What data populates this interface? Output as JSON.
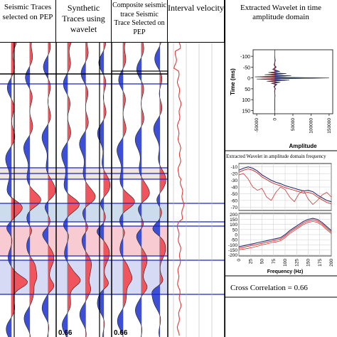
{
  "colors": {
    "positive_fill": "#f0545c",
    "negative_fill": "#3d4fd6",
    "band_tan": "#e8ddd0",
    "band_blue": "#bcd0e6",
    "band_pink": "#f6b8c3",
    "band_violet": "#c8cdf2",
    "horizon_line": "#1a22c8",
    "velocity_line": "#e03a3a",
    "frame": "#000000"
  },
  "headers": [
    {
      "key": "seismic",
      "text": "Seismic Traces selected on PEP"
    },
    {
      "key": "synthetic",
      "text": "Synthetic Traces using wavelet"
    },
    {
      "key": "composite",
      "text": "Composite seismic trace Seismic Trace Selected on PEP"
    },
    {
      "key": "velocity",
      "text": "Interval velocity"
    }
  ],
  "track_labels": {
    "synthetic_bottom": "0.66",
    "composite_bottom": "0.66"
  },
  "chart_data": [
    {
      "type": "line",
      "title": "Extracted Wavelet in time amplitude domain",
      "xlabel": "Amplitude",
      "ylabel": "Time (ms)",
      "x_ticks": [
        "-50000",
        "0",
        "50000",
        "100000",
        "150000"
      ],
      "y_ticks": [
        "-100",
        "-50",
        "0",
        "50",
        "100",
        "150"
      ],
      "xlim": [
        -60000,
        160000
      ],
      "ylim": [
        -130,
        165
      ],
      "series": [
        {
          "values_time_ms": [
            -100,
            -80,
            -60,
            -50,
            -40,
            -30,
            -25,
            -20,
            -15,
            -10,
            -5,
            0,
            5,
            10,
            15,
            20,
            25,
            30,
            40,
            50,
            60,
            80,
            100,
            150
          ],
          "values_amplitude": [
            0,
            1500,
            -2500,
            4000,
            -6000,
            14000,
            -18000,
            32000,
            -28000,
            45000,
            -55000,
            150000,
            -50000,
            40000,
            -22000,
            15000,
            -10000,
            6000,
            -3000,
            2000,
            -1000,
            800,
            0,
            0
          ]
        }
      ]
    },
    {
      "type": "line",
      "title": "Extracted Wavelet in amplitude domain frequency",
      "xlabel": "Frequency (Hz)",
      "x_ticks": [
        "0",
        "25",
        "50",
        "75",
        "100",
        "125",
        "150",
        "175",
        "200"
      ],
      "xlim": [
        0,
        200
      ],
      "upper_panel": {
        "y_ticks": [
          "-10",
          "-20",
          "-30",
          "-40",
          "-50",
          "-60",
          "-70"
        ],
        "ylim": [
          -75,
          -5
        ],
        "series": [
          {
            "x": [
              0,
              10,
              20,
              30,
              40,
              50,
              60,
              70,
              80,
              90,
              100,
              110,
              120,
              130,
              140,
              150,
              160,
              170,
              180,
              190,
              200
            ],
            "values": [
              -15,
              -12,
              -10,
              -12,
              -16,
              -22,
              -26,
              -30,
              -33,
              -35,
              -38,
              -40,
              -42,
              -44,
              -46,
              -45,
              -47,
              -52,
              -56,
              -60,
              -62
            ]
          },
          {
            "x": [
              0,
              10,
              20,
              30,
              40,
              50,
              60,
              70,
              80,
              90,
              100,
              110,
              120,
              130,
              140,
              150,
              160,
              170,
              180,
              190,
              200
            ],
            "values": [
              -18,
              -15,
              -13,
              -15,
              -19,
              -25,
              -29,
              -33,
              -36,
              -38,
              -41,
              -43,
              -45,
              -47,
              -49,
              -48,
              -50,
              -55,
              -59,
              -63,
              -65
            ]
          },
          {
            "x": [
              0,
              10,
              20,
              30,
              40,
              50,
              60,
              70,
              80,
              90,
              100,
              110,
              120,
              130,
              140,
              150,
              160,
              170,
              180,
              190,
              200
            ],
            "values": [
              -22,
              -20,
              -28,
              -40,
              -45,
              -42,
              -55,
              -60,
              -48,
              -40,
              -44,
              -55,
              -62,
              -50,
              -45,
              -58,
              -66,
              -60,
              -52,
              -48,
              -55
            ]
          }
        ]
      },
      "lower_panel": {
        "y_ticks": [
          "200",
          "150",
          "100",
          "50",
          "0",
          "-50",
          "-100",
          "-150",
          "-200"
        ],
        "ylim": [
          -210,
          210
        ],
        "series": [
          {
            "x": [
              0,
              10,
              20,
              30,
              40,
              50,
              60,
              70,
              80,
              90,
              100,
              110,
              120,
              130,
              140,
              150,
              160,
              170,
              180,
              190,
              200
            ],
            "values": [
              -120,
              -110,
              -100,
              -90,
              -80,
              -70,
              -60,
              -50,
              -40,
              -30,
              0,
              40,
              70,
              100,
              130,
              150,
              160,
              150,
              120,
              80,
              40
            ]
          },
          {
            "x": [
              0,
              10,
              20,
              30,
              40,
              50,
              60,
              70,
              80,
              90,
              100,
              110,
              120,
              130,
              140,
              150,
              160,
              170,
              180,
              190,
              200
            ],
            "values": [
              -135,
              -125,
              -115,
              -105,
              -95,
              -85,
              -75,
              -65,
              -55,
              -45,
              -15,
              25,
              55,
              85,
              115,
              135,
              145,
              135,
              105,
              65,
              25
            ]
          },
          {
            "x": [
              0,
              10,
              20,
              30,
              40,
              50,
              60,
              70,
              80,
              90,
              100,
              110,
              120,
              130,
              140,
              150,
              160,
              170,
              180,
              190,
              200
            ],
            "values": [
              -150,
              -142,
              -135,
              -125,
              -115,
              -100,
              -92,
              -80,
              -72,
              -60,
              -30,
              10,
              40,
              70,
              100,
              120,
              130,
              120,
              90,
              50,
              10
            ]
          }
        ]
      }
    }
  ],
  "cross_correlation_text": "Cross Correlation = 0.66"
}
